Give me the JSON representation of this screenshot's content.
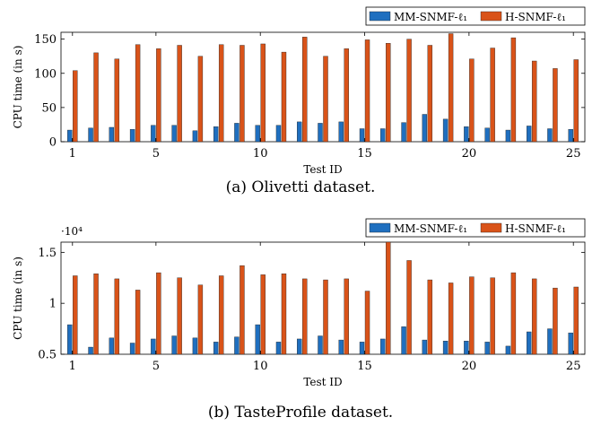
{
  "chart_data": [
    {
      "type": "bar",
      "caption": "(a) Olivetti dataset.",
      "xlabel": "Test ID",
      "ylabel": "CPU time (in s)",
      "exponent_label": "",
      "x": [
        1,
        2,
        3,
        4,
        5,
        6,
        7,
        8,
        9,
        10,
        11,
        12,
        13,
        14,
        15,
        16,
        17,
        18,
        19,
        20,
        21,
        22,
        23,
        24,
        25
      ],
      "xticks": [
        1,
        5,
        10,
        15,
        20,
        25
      ],
      "yticks": [
        0,
        50,
        100,
        150
      ],
      "ytick_labels": [
        "0",
        "50",
        "100",
        "150"
      ],
      "ylim": [
        0,
        160
      ],
      "legend_position": "top-right",
      "grid": false,
      "series": [
        {
          "name": "MM-SNMF-ℓ₁",
          "color": "#1f6fbf",
          "values": [
            17,
            20,
            21,
            18,
            24,
            24,
            16,
            22,
            27,
            24,
            24,
            29,
            27,
            29,
            19,
            19,
            28,
            40,
            33,
            22,
            20,
            17,
            23,
            19,
            18
          ]
        },
        {
          "name": "H-SNMF-ℓ₁",
          "color": "#d95319",
          "values": [
            104,
            130,
            121,
            142,
            136,
            141,
            125,
            142,
            141,
            143,
            131,
            153,
            125,
            136,
            149,
            144,
            150,
            141,
            158,
            121,
            137,
            152,
            118,
            107,
            120
          ]
        }
      ]
    },
    {
      "type": "bar",
      "caption": "(b) TasteProfile dataset.",
      "xlabel": "Test ID",
      "ylabel": "CPU time (in s)",
      "exponent_label": "·10⁴",
      "x": [
        1,
        2,
        3,
        4,
        5,
        6,
        7,
        8,
        9,
        10,
        11,
        12,
        13,
        14,
        15,
        16,
        17,
        18,
        19,
        20,
        21,
        22,
        23,
        24,
        25
      ],
      "xticks": [
        1,
        5,
        10,
        15,
        20,
        25
      ],
      "yticks": [
        0.5,
        1,
        1.5
      ],
      "ytick_labels": [
        "0.5",
        "1",
        "1.5"
      ],
      "ylim": [
        0.5,
        1.6
      ],
      "legend_position": "top-right",
      "grid": false,
      "series": [
        {
          "name": "MM-SNMF-ℓ₁",
          "color": "#1f6fbf",
          "values": [
            0.79,
            0.57,
            0.66,
            0.61,
            0.65,
            0.68,
            0.66,
            0.62,
            0.67,
            0.79,
            0.62,
            0.65,
            0.68,
            0.64,
            0.62,
            0.65,
            0.77,
            0.64,
            0.63,
            0.63,
            0.62,
            0.58,
            0.72,
            0.75,
            0.71
          ]
        },
        {
          "name": "H-SNMF-ℓ₁",
          "color": "#d95319",
          "values": [
            1.27,
            1.29,
            1.24,
            1.13,
            1.3,
            1.25,
            1.18,
            1.27,
            1.37,
            1.28,
            1.29,
            1.24,
            1.23,
            1.24,
            1.12,
            1.6,
            1.42,
            1.23,
            1.2,
            1.26,
            1.25,
            1.3,
            1.24,
            1.15,
            1.16
          ]
        }
      ]
    }
  ]
}
